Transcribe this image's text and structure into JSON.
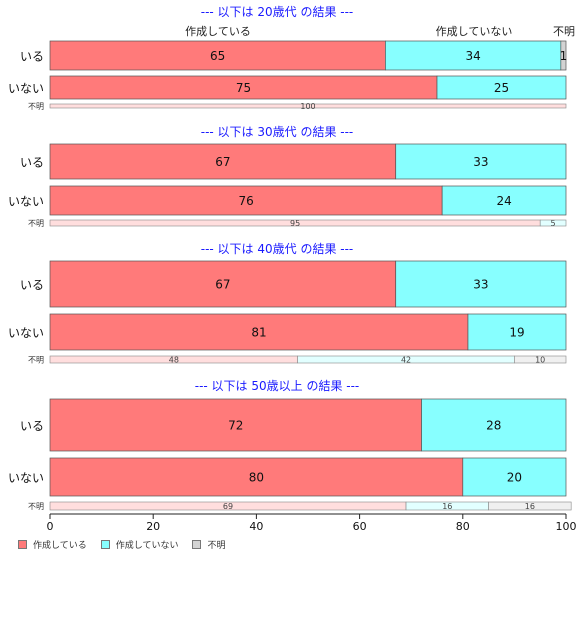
{
  "chart_data": {
    "type": "bar",
    "orientation": "horizontal",
    "stacked": true,
    "xlim": [
      0,
      100
    ],
    "xticks": [
      0,
      20,
      40,
      60,
      80,
      100
    ],
    "grid": false,
    "legend_position": "bottom-left",
    "colors": {
      "made": "#ff7a7a",
      "not_made": "#87ffff",
      "unknown": "#d3d3d3",
      "made_light": "#ffdede",
      "not_made_light": "#e2ffff",
      "unknown_light": "#f0f0f0",
      "title": "#1a1aff"
    },
    "legend": [
      "作成している",
      "作成していない",
      "不明"
    ],
    "top_header_labels": [
      "作成している",
      "作成していない",
      "不明"
    ],
    "groups": [
      {
        "title": "--- 以下は 20歳代 の結果 ---",
        "rows": [
          {
            "label": "いる",
            "values": [
              65,
              34,
              1
            ],
            "labels": [
              "65",
              "34",
              "1"
            ]
          },
          {
            "label": "いない",
            "values": [
              75,
              25,
              0
            ],
            "labels": [
              "75",
              "25",
              ""
            ]
          }
        ],
        "unknown_row": {
          "label": "不明",
          "values": [
            100,
            0,
            0
          ],
          "labels": [
            "100",
            "",
            ""
          ]
        }
      },
      {
        "title": "--- 以下は 30歳代 の結果 ---",
        "rows": [
          {
            "label": "いる",
            "values": [
              67,
              33,
              0
            ],
            "labels": [
              "67",
              "33",
              ""
            ]
          },
          {
            "label": "いない",
            "values": [
              76,
              24,
              0
            ],
            "labels": [
              "76",
              "24",
              ""
            ]
          }
        ],
        "unknown_row": {
          "label": "不明",
          "values": [
            95,
            5,
            0
          ],
          "labels": [
            "95",
            "5",
            ""
          ]
        }
      },
      {
        "title": "--- 以下は 40歳代 の結果 ---",
        "rows": [
          {
            "label": "いる",
            "values": [
              67,
              33,
              0
            ],
            "labels": [
              "67",
              "33",
              ""
            ]
          },
          {
            "label": "いない",
            "values": [
              81,
              19,
              0
            ],
            "labels": [
              "81",
              "19",
              ""
            ]
          }
        ],
        "unknown_row": {
          "label": "不明",
          "values": [
            48,
            42,
            10
          ],
          "labels": [
            "48",
            "42",
            "10"
          ]
        }
      },
      {
        "title": "--- 以下は 50歳以上 の結果 ---",
        "rows": [
          {
            "label": "いる",
            "values": [
              72,
              28,
              0
            ],
            "labels": [
              "72",
              "28",
              ""
            ]
          },
          {
            "label": "いない",
            "values": [
              80,
              20,
              0
            ],
            "labels": [
              "80",
              "20",
              ""
            ]
          }
        ],
        "unknown_row": {
          "label": "不明",
          "values": [
            69,
            16,
            16
          ],
          "labels": [
            "69",
            "16",
            "16"
          ]
        }
      }
    ]
  }
}
